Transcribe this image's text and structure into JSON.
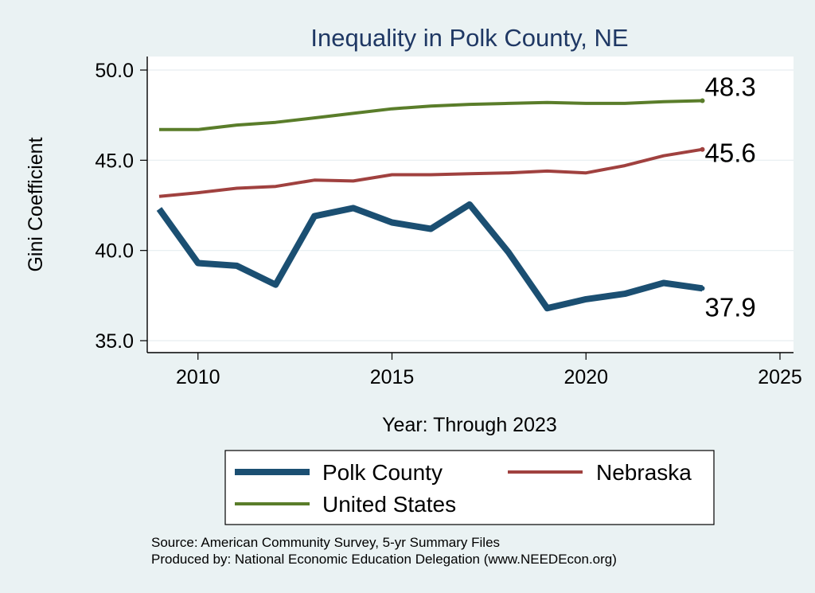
{
  "chart_data": {
    "type": "line",
    "title": "Inequality in Polk County, NE",
    "xlabel": "Year: Through 2023",
    "ylabel": "Gini Coefficient",
    "xlim": [
      2009,
      2025
    ],
    "ylim": [
      35,
      51
    ],
    "xticks": [
      2010,
      2015,
      2020,
      2025
    ],
    "yticks": [
      35,
      40,
      45,
      50
    ],
    "ytick_labels": [
      "35.0",
      "40.0",
      "45.0",
      "50.0"
    ],
    "x": [
      2009,
      2010,
      2011,
      2012,
      2013,
      2014,
      2015,
      2016,
      2017,
      2018,
      2019,
      2020,
      2021,
      2022,
      2023
    ],
    "series": [
      {
        "name": "Polk County",
        "color": "#1b4f72",
        "values": [
          42.3,
          39.3,
          39.15,
          38.1,
          41.9,
          42.35,
          41.55,
          41.2,
          42.55,
          39.9,
          36.8,
          37.3,
          37.6,
          38.2,
          37.9
        ],
        "end_label": "37.9"
      },
      {
        "name": "Nebraska",
        "color": "#a0413f",
        "values": [
          43.0,
          43.2,
          43.45,
          43.55,
          43.9,
          43.85,
          44.2,
          44.2,
          44.25,
          44.3,
          44.4,
          44.3,
          44.7,
          45.25,
          45.6
        ],
        "end_label": "45.6"
      },
      {
        "name": "United States",
        "color": "#5a7d2a",
        "values": [
          46.7,
          46.7,
          46.95,
          47.1,
          47.35,
          47.6,
          47.85,
          48.0,
          48.1,
          48.15,
          48.2,
          48.15,
          48.15,
          48.25,
          48.3
        ],
        "end_label": "48.3"
      }
    ],
    "legend_position": "bottom",
    "source_lines": [
      "Source: American Community Survey, 5-yr Summary Files",
      "Produced by: National Economic Education Delegation (www.NEEDEcon.org)"
    ]
  }
}
